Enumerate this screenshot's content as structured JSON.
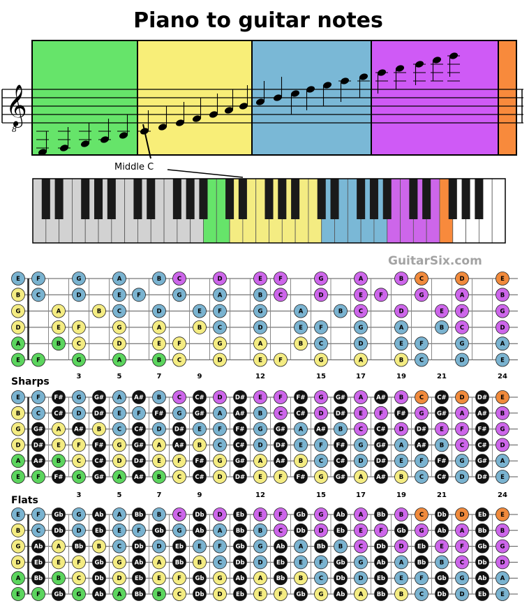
{
  "title": "Piano to guitar notes",
  "watermark": "GuitarSix.com",
  "callout": "Middle C",
  "sections": {
    "sharps": "Sharps",
    "flats": "Flats"
  },
  "fret_numbers": [
    "3",
    "5",
    "7",
    "9",
    "12",
    "15",
    "17",
    "19",
    "21",
    "24"
  ],
  "fret_number_positions": [
    3,
    5,
    7,
    9,
    12,
    15,
    17,
    19,
    21,
    24
  ],
  "string_open_notes": [
    "E",
    "B",
    "G",
    "D",
    "A",
    "E"
  ],
  "chromatic_sharps": [
    "C",
    "C#",
    "D",
    "D#",
    "E",
    "F",
    "F#",
    "G",
    "G#",
    "A",
    "A#",
    "B"
  ],
  "chromatic_flats": [
    "C",
    "Db",
    "D",
    "Eb",
    "E",
    "F",
    "Gb",
    "G",
    "Ab",
    "A",
    "Bb",
    "B"
  ],
  "staff_bands": [
    {
      "range": "E2-B2",
      "color": "#66e46a"
    },
    {
      "range": "C3-B3",
      "color": "#f8ee78"
    },
    {
      "range": "C4-B4",
      "color": "#7ab8d6"
    },
    {
      "range": "C5-B5",
      "color": "#cf5af6"
    },
    {
      "range": "C6-E6",
      "color": "#f88a3c"
    }
  ],
  "colors": {
    "E2-B2": "#5cd55e",
    "C3-B3": "#f4ec82",
    "C4-B4": "#7ab3d0",
    "C5-B5": "#cd66ea",
    "C6-E6": "#f08a3c",
    "accidental": "#111111"
  }
}
